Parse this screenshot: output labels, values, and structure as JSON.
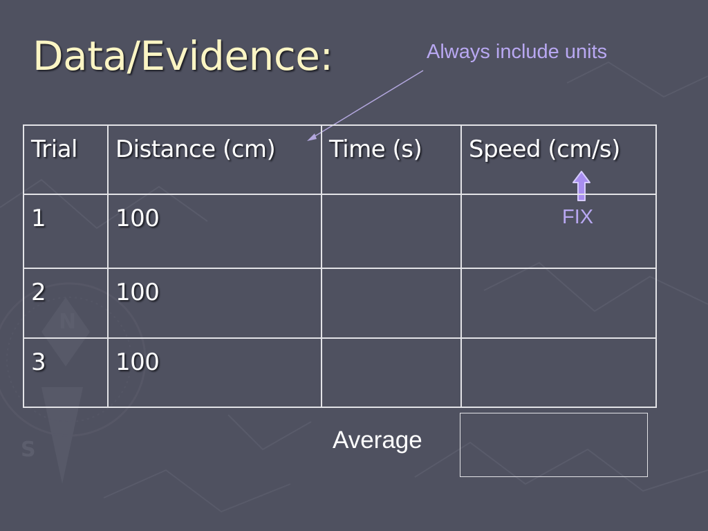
{
  "slide": {
    "title": "Data/Evidence:",
    "annotation": "Always include units",
    "fix_note": "FIX",
    "average_label": "Average",
    "colors": {
      "background": "#4f5160",
      "title": "#fbf5c4",
      "annotation": "#b9a8f2",
      "table_text": "#ffffff",
      "table_border": "#e4e4e8"
    }
  },
  "table": {
    "headers": [
      "Trial",
      "Distance (cm)",
      "Time (s)",
      "Speed (cm/s)"
    ],
    "rows": [
      {
        "trial": "1",
        "distance": "100",
        "time": "",
        "speed": ""
      },
      {
        "trial": "2",
        "distance": "100",
        "time": "",
        "speed": ""
      },
      {
        "trial": "3",
        "distance": "100",
        "time": "",
        "speed": ""
      }
    ]
  },
  "icons": {
    "pointer_arrow": "arrow-to-distance-header-icon",
    "fix_arrow": "up-arrow-icon"
  }
}
